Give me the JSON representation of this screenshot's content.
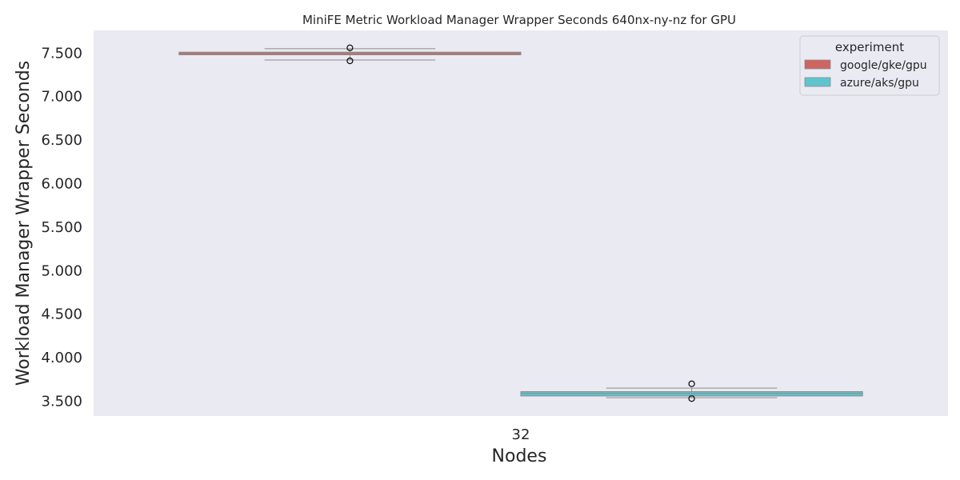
{
  "chart_data": {
    "type": "box",
    "title": "MiniFE Metric Workload Manager Wrapper Seconds 640nx-ny-nz for GPU",
    "xlabel": "Nodes",
    "ylabel": "Workload Manager Wrapper Seconds",
    "categories": [
      "32"
    ],
    "ylim": [
      3.33,
      7.76
    ],
    "yticks": [
      3.5,
      4.0,
      4.5,
      5.0,
      5.5,
      6.0,
      6.5,
      7.0,
      7.5
    ],
    "ytick_labels": [
      "3.500",
      "4.000",
      "4.500",
      "5.000",
      "5.500",
      "6.000",
      "6.500",
      "7.000",
      "7.500"
    ],
    "grid": false,
    "legend": {
      "title": "experiment",
      "placement": "top-right"
    },
    "series": [
      {
        "name": "google/gke/gpu",
        "color": "#cd6661",
        "category": "32",
        "whisker_low": 7.42,
        "q1": 7.48,
        "median": 7.5,
        "q3": 7.51,
        "whisker_high": 7.55,
        "outliers": [
          7.56,
          7.41
        ]
      },
      {
        "name": "azure/aks/gpu",
        "color": "#5ec5cd",
        "category": "32",
        "whisker_low": 3.54,
        "q1": 3.56,
        "median": 3.59,
        "q3": 3.61,
        "whisker_high": 3.65,
        "outliers": [
          3.7,
          3.53
        ]
      }
    ]
  }
}
